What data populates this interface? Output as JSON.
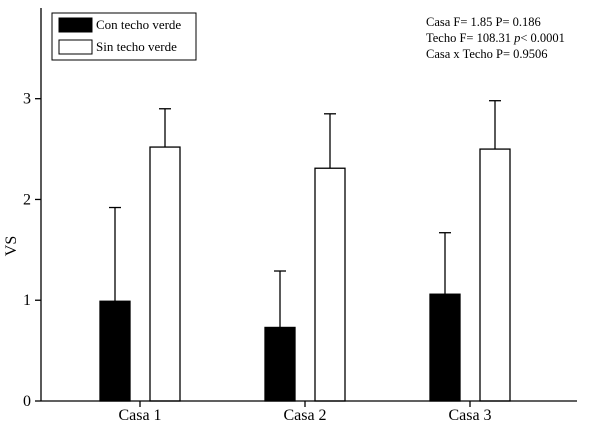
{
  "chart_data": {
    "type": "bar",
    "categories": [
      "Casa 1",
      "Casa 2",
      "Casa 3"
    ],
    "series": [
      {
        "name": "Con techo verde",
        "color": "#000000",
        "values": [
          0.99,
          0.73,
          1.06
        ],
        "error_upper": [
          1.92,
          1.29,
          1.67
        ]
      },
      {
        "name": "Sin techo verde",
        "color": "#ffffff",
        "values": [
          2.52,
          2.31,
          2.5
        ],
        "error_upper": [
          2.9,
          2.85,
          2.98
        ]
      }
    ],
    "xlabel": "",
    "ylabel": "VS",
    "ylim": [
      0,
      3.9
    ],
    "yticks": [
      0,
      1,
      2,
      3
    ],
    "grid": false,
    "legend_position": "top-left",
    "stats": [
      {
        "prefix": "Casa F= 1.85 P= 0.186",
        "italic": "",
        "suffix": ""
      },
      {
        "prefix": "Techo F= 108.31 ",
        "italic": "p",
        "suffix": "< 0.0001"
      },
      {
        "prefix": "Casa x Techo P= 0.9506",
        "italic": "",
        "suffix": ""
      }
    ]
  }
}
